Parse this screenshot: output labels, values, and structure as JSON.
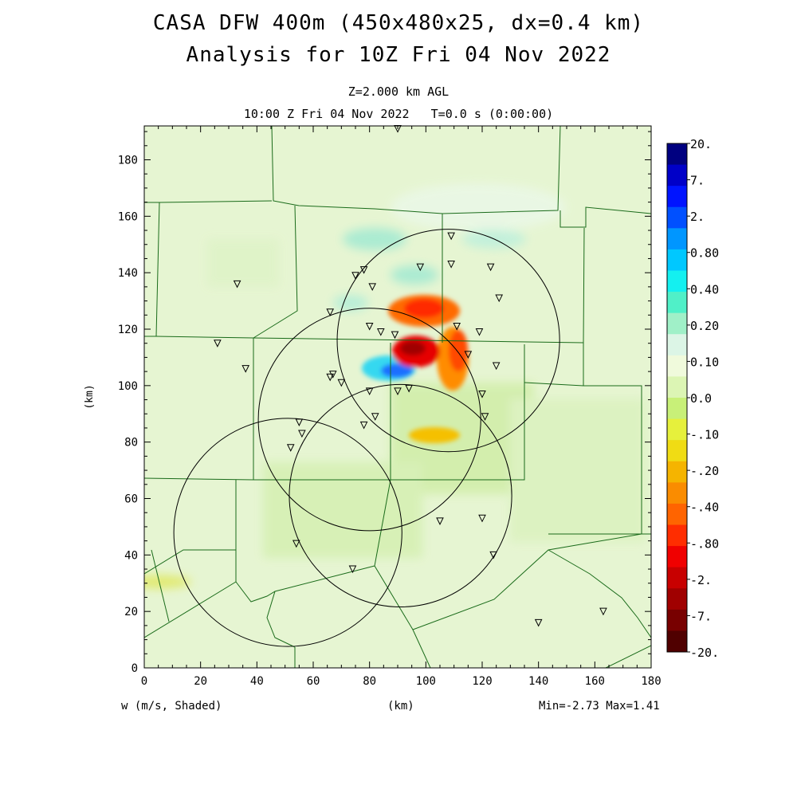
{
  "header": {
    "title_line1": "CASA DFW 400m (450x480x25, dx=0.4 km)",
    "title_line2": "Analysis for 10Z Fri 04 Nov 2022",
    "level": "Z=2.000 km AGL",
    "time": "10:00 Z Fri 04 Nov 2022   T=0.0 s (0:00:00)"
  },
  "footer": {
    "variable": "w (m/s, Shaded)",
    "x_unit": "(km)",
    "minmax": "Min=-2.73 Max=1.41"
  },
  "chart_data": {
    "type": "heatmap",
    "variable": "w",
    "units": "m/s",
    "xlabel": "(km)",
    "ylabel": "(km)",
    "xlim": [
      0,
      180
    ],
    "ylim": [
      0,
      192
    ],
    "x_ticks": [
      "0",
      "20",
      "40",
      "60",
      "80",
      "100",
      "120",
      "140",
      "160",
      "180"
    ],
    "y_ticks": [
      "0",
      "20",
      "40",
      "60",
      "80",
      "100",
      "120",
      "140",
      "160",
      "180"
    ],
    "min": -2.73,
    "max": 1.41,
    "colorbar": {
      "labels": [
        "20.",
        "7.",
        "2.",
        "0.80",
        "0.40",
        "0.20",
        "0.10",
        "0.0",
        "-.10",
        "-.20",
        "-.40",
        "-.80",
        "-2.",
        "-7.",
        "-20."
      ],
      "colors": [
        "#000080",
        "#0000c8",
        "#0014ff",
        "#0050ff",
        "#0096ff",
        "#00c8ff",
        "#14f0f0",
        "#50f0c8",
        "#a0f0c8",
        "#dcf5e6",
        "#f0fadc",
        "#dcf5b4",
        "#c8f078",
        "#e6f03c",
        "#f0dc14",
        "#f5b400",
        "#fa8c00",
        "#ff6400",
        "#ff2d00",
        "#f00000",
        "#c80000",
        "#a00000",
        "#780000",
        "#500000"
      ]
    },
    "features": [
      {
        "name": "updraft max",
        "value": 1.41,
        "x": 96,
        "y": 107
      },
      {
        "name": "downdraft min",
        "value": -2.73,
        "x": 94,
        "y": 113
      },
      {
        "name": "downdraft band",
        "value": -0.8,
        "x": 104,
        "y": 127
      },
      {
        "name": "downdraft band",
        "value": -0.4,
        "x": 110,
        "y": 106
      }
    ],
    "radar_rings": [
      {
        "cx": 108,
        "cy": 116,
        "r": 39.5
      },
      {
        "cx": 80,
        "cy": 88,
        "r": 39.5
      },
      {
        "cx": 91,
        "cy": 61,
        "r": 39.5
      },
      {
        "cx": 51,
        "cy": 48,
        "r": 40.5
      }
    ],
    "stations": [
      [
        33,
        136
      ],
      [
        90,
        191
      ],
      [
        109,
        153
      ],
      [
        98,
        142
      ],
      [
        109,
        143
      ],
      [
        123,
        142
      ],
      [
        78,
        141
      ],
      [
        75,
        139
      ],
      [
        81,
        135
      ],
      [
        126,
        131
      ],
      [
        66,
        126
      ],
      [
        80,
        121
      ],
      [
        84,
        119
      ],
      [
        89,
        118
      ],
      [
        111,
        121
      ],
      [
        119,
        119
      ],
      [
        115,
        111
      ],
      [
        26,
        115
      ],
      [
        36,
        106
      ],
      [
        67,
        104
      ],
      [
        66,
        103
      ],
      [
        70,
        101
      ],
      [
        125,
        107
      ],
      [
        80,
        98
      ],
      [
        90,
        98
      ],
      [
        94,
        99
      ],
      [
        120,
        97
      ],
      [
        55,
        87
      ],
      [
        56,
        83
      ],
      [
        52,
        78
      ],
      [
        78,
        86
      ],
      [
        82,
        89
      ],
      [
        121,
        89
      ],
      [
        105,
        52
      ],
      [
        120,
        53
      ],
      [
        54,
        44
      ],
      [
        124,
        40
      ],
      [
        74,
        35
      ],
      [
        140,
        16
      ],
      [
        163,
        20
      ]
    ]
  }
}
